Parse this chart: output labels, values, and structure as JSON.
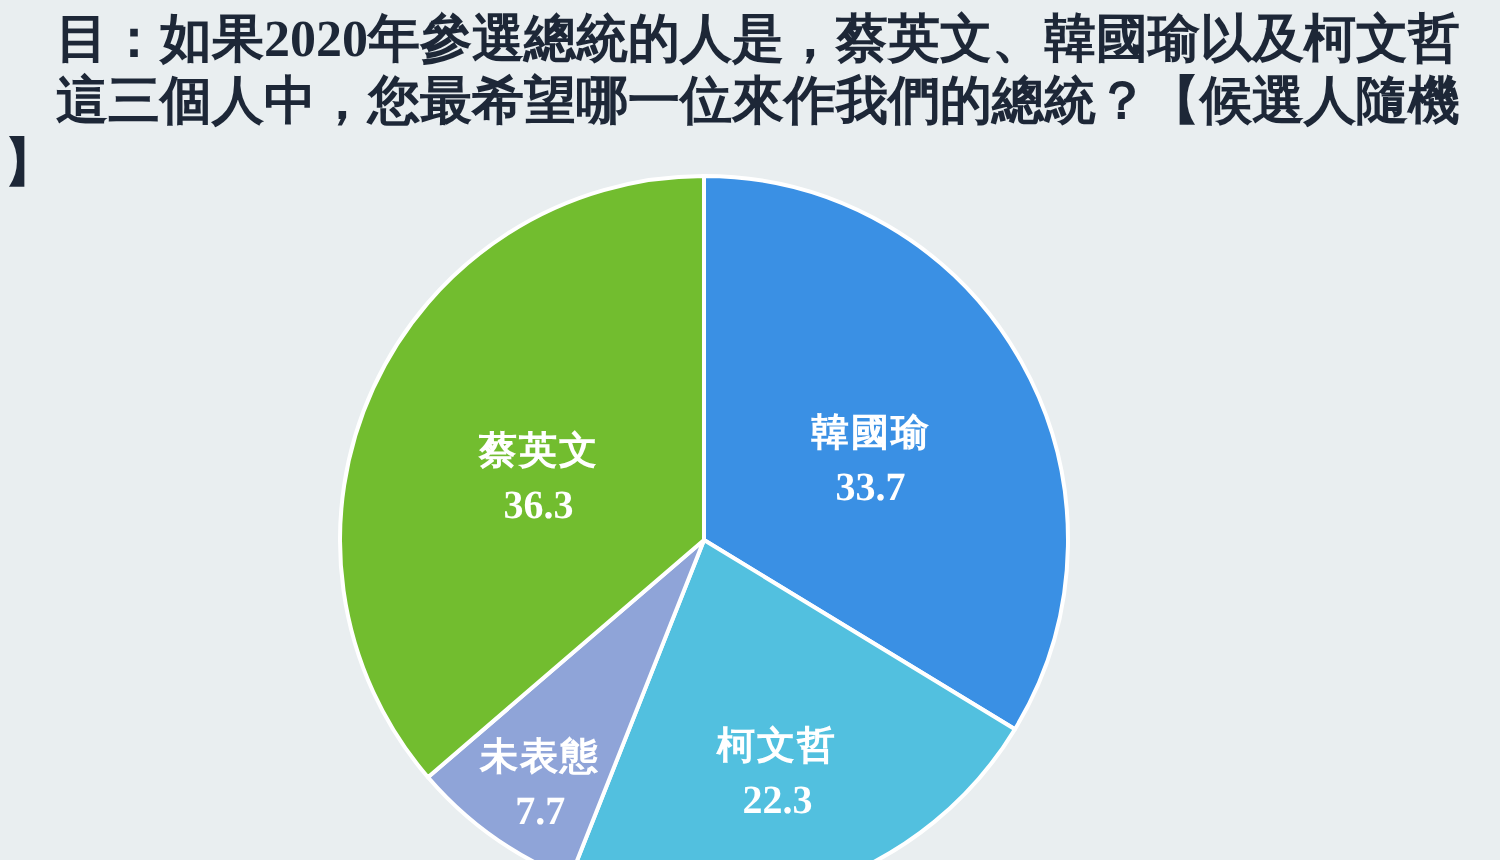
{
  "chart_data": {
    "type": "pie",
    "title": "目：如果2020年參選總統的人是，蔡英文、韓國瑜以及柯文哲這三個人中，您最希望哪一位來作我們的總統？【候選人隨機】",
    "categories": [
      "韓國瑜",
      "柯文哲",
      "未表態",
      "蔡英文"
    ],
    "values": [
      33.7,
      22.3,
      7.7,
      36.3
    ],
    "colors": [
      "#3a90e4",
      "#52c0df",
      "#8fa4d8",
      "#72bd2f"
    ],
    "data_labels": true
  }
}
